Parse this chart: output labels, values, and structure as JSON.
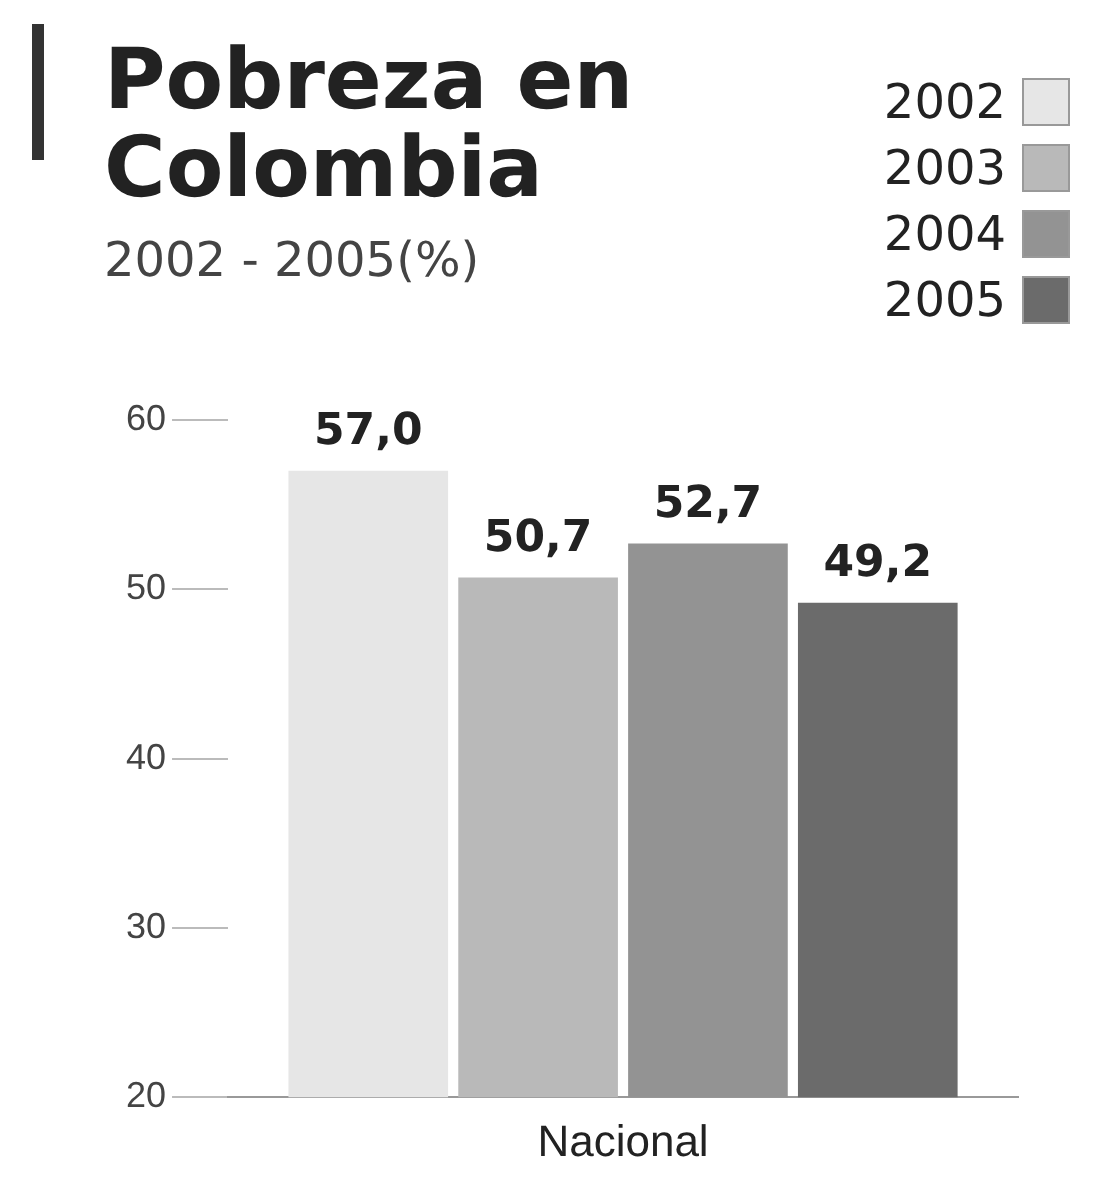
{
  "chart_data": {
    "type": "bar",
    "title": "Pobreza en Colombia",
    "subtitle": "2002 - 2005(%)",
    "categories": [
      "Nacional"
    ],
    "series": [
      {
        "name": "2002",
        "color": "#e6e6e6",
        "values": [
          57.0
        ],
        "value_labels": [
          "57,0"
        ]
      },
      {
        "name": "2003",
        "color": "#b9b9b9",
        "values": [
          50.7
        ],
        "value_labels": [
          "50,7"
        ]
      },
      {
        "name": "2004",
        "color": "#939393",
        "values": [
          52.7
        ],
        "value_labels": [
          "52,7"
        ]
      },
      {
        "name": "2005",
        "color": "#6b6b6b",
        "values": [
          49.2
        ],
        "value_labels": [
          "49,2"
        ]
      }
    ],
    "ylim": [
      20,
      60
    ],
    "yticks": [
      20,
      30,
      40,
      50,
      60
    ],
    "legend": "top right",
    "grid": false
  }
}
